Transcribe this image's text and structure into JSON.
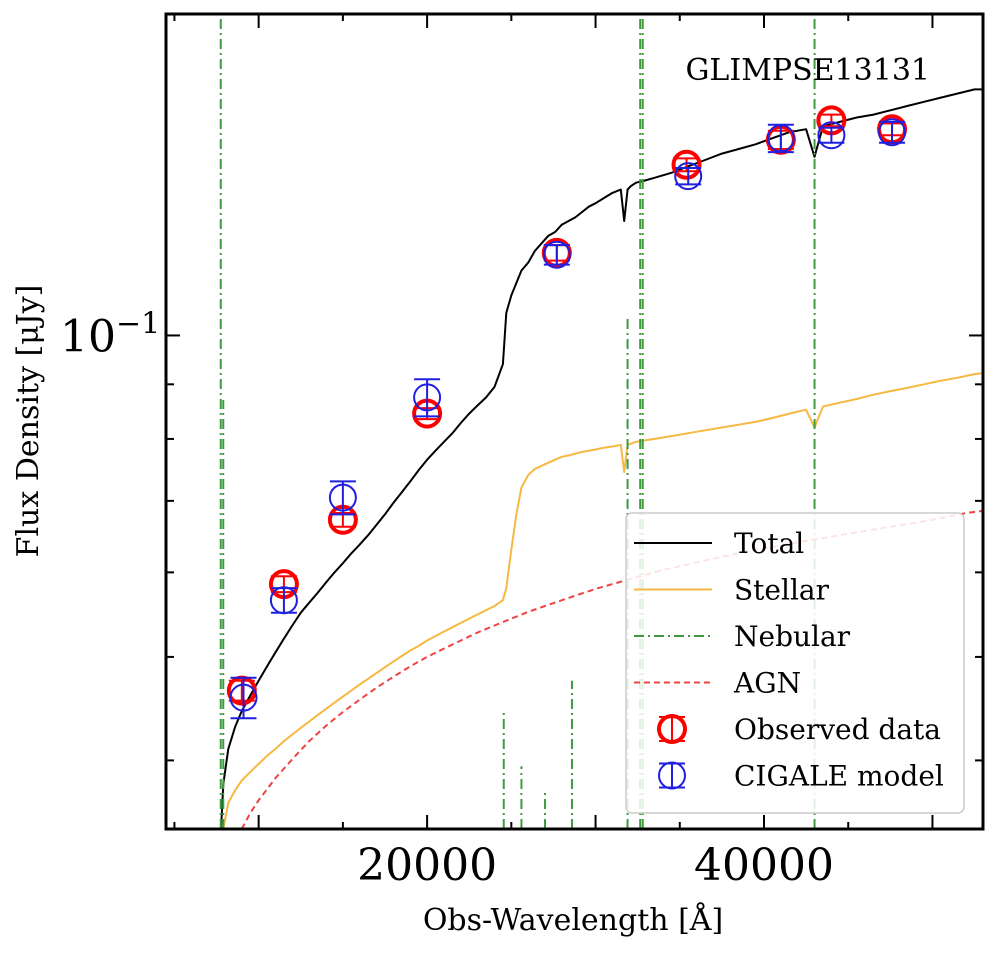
{
  "chart_data": {
    "type": "line",
    "title": "GLIMPSE13131",
    "xlabel": "Obs-Wavelength [Å]",
    "ylabel": "Flux Density [μJy]",
    "xlim": [
      4500,
      53000
    ],
    "ylim": [
      0.0345,
      0.2
    ],
    "yscale": "log",
    "x_ticks": [
      20000,
      40000
    ],
    "y_tick_main": {
      "value": 0.1,
      "label": "10",
      "exponent": "−1"
    },
    "grid": false,
    "legend_position": "bottom-right",
    "legend": {
      "total": "Total",
      "stellar": "Stellar",
      "nebular": "Nebular",
      "agn": "AGN",
      "observed": "Observed data",
      "cigale": "CIGALE model"
    },
    "colors": {
      "total": "#000000",
      "stellar": "#f5b942",
      "nebular": "#3f9a3f",
      "agn": "#ee4444",
      "observed": "#ff0000",
      "cigale": "#1f1fe0"
    },
    "series": [
      {
        "name": "Total",
        "key": "total",
        "x": [
          7750,
          7900,
          8200,
          8600,
          9000,
          9500,
          10000,
          10500,
          11000,
          11500,
          12000,
          12500,
          13000,
          13500,
          14000,
          14500,
          15000,
          15500,
          16000,
          16500,
          17000,
          17500,
          18000,
          18500,
          19000,
          19500,
          20000,
          20500,
          21000,
          21500,
          22000,
          22500,
          23000,
          23500,
          24000,
          24500,
          24700,
          25000,
          25300,
          25600,
          26000,
          26400,
          26800,
          27200,
          27600,
          28000,
          28400,
          28800,
          29200,
          29600,
          30000,
          30500,
          31000,
          31500,
          31700,
          31900,
          32100,
          32400,
          32800,
          33500,
          34500,
          35500,
          36500,
          37500,
          38500,
          39500,
          40500,
          41500,
          42500,
          43000,
          43500,
          44500,
          45500,
          46500,
          47500,
          48500,
          49500,
          50500,
          51500,
          52500,
          53000
        ],
        "y": [
          0.034,
          0.038,
          0.041,
          0.043,
          0.0445,
          0.046,
          0.0475,
          0.049,
          0.0505,
          0.052,
          0.0535,
          0.055,
          0.0562,
          0.0574,
          0.0587,
          0.06,
          0.0612,
          0.0625,
          0.0637,
          0.065,
          0.0665,
          0.068,
          0.0697,
          0.0713,
          0.073,
          0.0748,
          0.0765,
          0.078,
          0.0795,
          0.081,
          0.0828,
          0.0845,
          0.086,
          0.0875,
          0.0895,
          0.094,
          0.105,
          0.109,
          0.112,
          0.115,
          0.117,
          0.12,
          0.122,
          0.124,
          0.125,
          0.127,
          0.128,
          0.129,
          0.1305,
          0.132,
          0.133,
          0.1345,
          0.136,
          0.137,
          0.128,
          0.137,
          0.138,
          0.139,
          0.1395,
          0.1405,
          0.142,
          0.144,
          0.146,
          0.148,
          0.1495,
          0.151,
          0.153,
          0.155,
          0.156,
          0.147,
          0.157,
          0.1585,
          0.16,
          0.161,
          0.1625,
          0.164,
          0.1655,
          0.167,
          0.1685,
          0.17,
          0.17
        ]
      },
      {
        "name": "Stellar",
        "key": "stellar",
        "x": [
          7900,
          8200,
          8600,
          9000,
          9500,
          10000,
          10500,
          11000,
          11500,
          12000,
          12500,
          13000,
          13500,
          14000,
          14500,
          15000,
          15500,
          16000,
          16500,
          17000,
          17500,
          18000,
          18500,
          19000,
          19500,
          20000,
          20500,
          21000,
          21500,
          22000,
          22500,
          23000,
          23500,
          24000,
          24500,
          24700,
          25000,
          25300,
          25600,
          26000,
          26400,
          26800,
          27200,
          27600,
          28000,
          28400,
          28800,
          29200,
          29600,
          30000,
          30500,
          31000,
          31500,
          31700,
          31900,
          32100,
          32400,
          32800,
          33500,
          34500,
          35500,
          36500,
          37500,
          38500,
          39500,
          40500,
          41500,
          42500,
          43000,
          43500,
          44500,
          45500,
          46500,
          47500,
          48500,
          49500,
          50500,
          51500,
          52500,
          53000
        ],
        "y": [
          0.0345,
          0.0365,
          0.0375,
          0.0383,
          0.039,
          0.0397,
          0.0404,
          0.041,
          0.0417,
          0.0423,
          0.0429,
          0.0435,
          0.0441,
          0.0447,
          0.0453,
          0.0459,
          0.0465,
          0.0471,
          0.0477,
          0.0483,
          0.0489,
          0.0495,
          0.0501,
          0.0507,
          0.0512,
          0.0518,
          0.0523,
          0.0528,
          0.0533,
          0.0538,
          0.0543,
          0.0548,
          0.0553,
          0.0558,
          0.0565,
          0.058,
          0.063,
          0.068,
          0.072,
          0.074,
          0.075,
          0.0755,
          0.076,
          0.0765,
          0.077,
          0.0772,
          0.0775,
          0.0778,
          0.078,
          0.0782,
          0.0785,
          0.0787,
          0.079,
          0.0745,
          0.079,
          0.0792,
          0.0795,
          0.0797,
          0.08,
          0.0805,
          0.081,
          0.0815,
          0.082,
          0.0825,
          0.083,
          0.0837,
          0.0845,
          0.0852,
          0.082,
          0.0858,
          0.0865,
          0.0872,
          0.088,
          0.0887,
          0.0893,
          0.09,
          0.0907,
          0.0913,
          0.092,
          0.0922
        ]
      },
      {
        "name": "AGN",
        "key": "agn",
        "x": [
          9000,
          9500,
          10000,
          11000,
          12000,
          13000,
          14000,
          15000,
          16000,
          17000,
          18000,
          19000,
          20000,
          21000,
          22000,
          23000,
          24000,
          25000,
          26000,
          27000,
          28000,
          29000,
          30000,
          31000,
          32000,
          33000,
          34000,
          35000,
          36000,
          37000,
          38000,
          39000,
          40000,
          41000,
          42000,
          43000,
          44000,
          45000,
          46000,
          47000,
          48000,
          49000,
          50000,
          51000,
          52000,
          53000
        ],
        "y": [
          0.0345,
          0.0357,
          0.0367,
          0.0385,
          0.0401,
          0.0417,
          0.0431,
          0.0444,
          0.0456,
          0.0468,
          0.0479,
          0.049,
          0.05,
          0.0509,
          0.0518,
          0.0527,
          0.0535,
          0.0543,
          0.0551,
          0.0558,
          0.0565,
          0.0572,
          0.0579,
          0.0585,
          0.0591,
          0.0597,
          0.0603,
          0.0608,
          0.0613,
          0.0618,
          0.0623,
          0.0628,
          0.0632,
          0.0636,
          0.064,
          0.0644,
          0.0648,
          0.0652,
          0.0656,
          0.066,
          0.0664,
          0.0668,
          0.0672,
          0.0677,
          0.0682,
          0.0685
        ]
      },
      {
        "name": "Nebular",
        "key": "nebular",
        "lines": [
          {
            "x": 7750,
            "y": 0.2
          },
          {
            "x": 7900,
            "y": 0.087
          },
          {
            "x": 24550,
            "y": 0.0445
          },
          {
            "x": 25600,
            "y": 0.0395
          },
          {
            "x": 27000,
            "y": 0.0375
          },
          {
            "x": 28600,
            "y": 0.0475
          },
          {
            "x": 31900,
            "y": 0.104
          },
          {
            "x": 32650,
            "y": 0.2
          },
          {
            "x": 32800,
            "y": 0.2
          },
          {
            "x": 43000,
            "y": 0.2
          }
        ]
      }
    ],
    "points": {
      "observed": [
        {
          "x": 9000,
          "y": 0.0465,
          "err": 0.001
        },
        {
          "x": 11500,
          "y": 0.0585,
          "err": 0.001
        },
        {
          "x": 15000,
          "y": 0.0672,
          "err": 0.001
        },
        {
          "x": 20000,
          "y": 0.0845,
          "err": 0.001
        },
        {
          "x": 27700,
          "y": 0.1195,
          "err": 0.002
        },
        {
          "x": 35400,
          "y": 0.1445,
          "err": 0.002
        },
        {
          "x": 41000,
          "y": 0.1525,
          "err": 0.003
        },
        {
          "x": 44000,
          "y": 0.159,
          "err": 0.002
        },
        {
          "x": 47600,
          "y": 0.156,
          "err": 0.002
        }
      ],
      "cigale": [
        {
          "x": 9100,
          "y": 0.0458,
          "err": 0.002
        },
        {
          "x": 11500,
          "y": 0.0565,
          "err": 0.0015
        },
        {
          "x": 15000,
          "y": 0.0705,
          "err": 0.0025
        },
        {
          "x": 20000,
          "y": 0.0875,
          "err": 0.0035
        },
        {
          "x": 27700,
          "y": 0.119,
          "err": 0.0025
        },
        {
          "x": 35500,
          "y": 0.141,
          "err": 0.0025
        },
        {
          "x": 41000,
          "y": 0.153,
          "err": 0.0045
        },
        {
          "x": 44000,
          "y": 0.154,
          "err": 0.0025
        },
        {
          "x": 47600,
          "y": 0.155,
          "err": 0.0035
        }
      ]
    }
  }
}
